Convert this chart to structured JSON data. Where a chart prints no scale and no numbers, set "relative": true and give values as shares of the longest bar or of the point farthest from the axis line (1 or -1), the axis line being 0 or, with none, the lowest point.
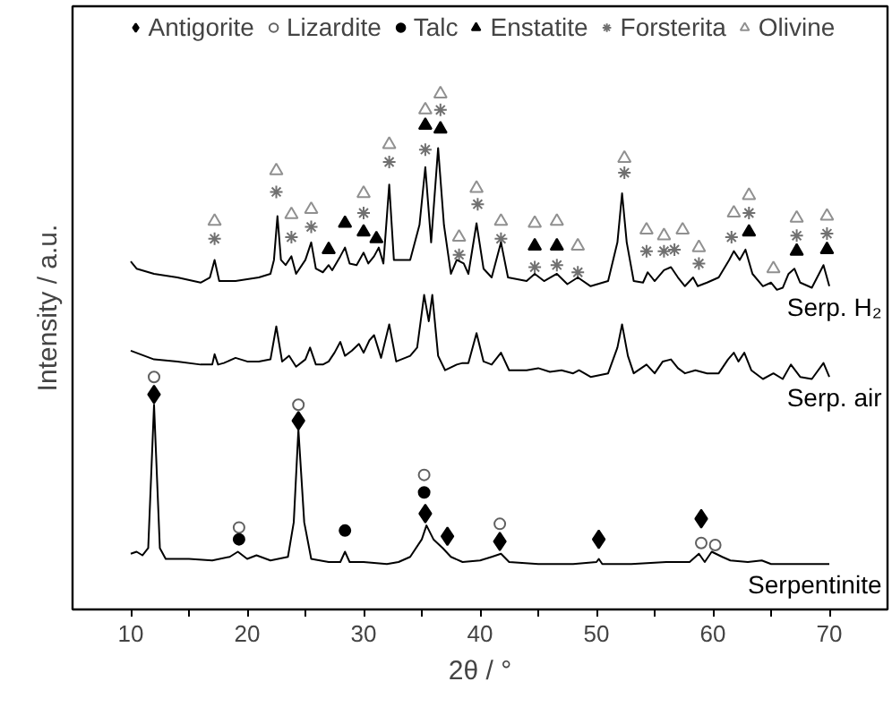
{
  "chart_data": {
    "type": "line",
    "relative": true,
    "xlabel": "2θ / °",
    "ylabel": "Intensity / a.u.",
    "xlim": [
      5,
      75
    ],
    "xticks": [
      10,
      {
        "value": 15,
        "label": null
      },
      20,
      {
        "value": 25,
        "label": null
      },
      30,
      {
        "value": 35,
        "label": null
      },
      40,
      {
        "value": 45,
        "label": null
      },
      50,
      {
        "value": 55,
        "label": null
      },
      60,
      {
        "value": 65,
        "label": null
      },
      70
    ],
    "legend": "top",
    "grid": false,
    "series": [
      {
        "name": "Antigorite",
        "type": "scatter",
        "marker": "diamond",
        "color": "#000000",
        "x": [
          12.0,
          24.4,
          35.3,
          37.2,
          41.7,
          50.2,
          59.0
        ],
        "values": [
          0.417,
          0.366,
          0.186,
          0.142,
          0.132,
          0.136,
          0.176
        ]
      },
      {
        "name": "Lizardite",
        "type": "scatter",
        "marker": "circle_open",
        "color": "#606060",
        "x": [
          12.0,
          19.3,
          24.4,
          35.2,
          41.7,
          59.0,
          60.2
        ],
        "values": [
          0.451,
          0.159,
          0.397,
          0.261,
          0.166,
          0.129,
          0.125
        ]
      },
      {
        "name": "Talc",
        "type": "scatter",
        "marker": "circle",
        "color": "#000000",
        "x": [
          19.3,
          28.4,
          35.2
        ],
        "values": [
          0.136,
          0.153,
          0.227
        ]
      },
      {
        "name": "Enstatite",
        "type": "scatter",
        "marker": "triangle",
        "color": "#000000",
        "x": [
          27.0,
          28.4,
          30.0,
          31.1,
          35.3,
          36.6,
          44.7,
          46.6,
          63.1,
          67.2,
          69.8
        ],
        "values": [
          0.698,
          0.749,
          0.732,
          0.719,
          0.939,
          0.932,
          0.705,
          0.705,
          0.732,
          0.695,
          0.698
        ]
      },
      {
        "name": "Forsterita",
        "type": "scatter",
        "marker": "cross",
        "color": "#707070",
        "x": [
          17.2,
          22.5,
          23.8,
          25.5,
          30.0,
          32.2,
          35.3,
          36.6,
          38.2,
          39.8,
          41.8,
          44.7,
          46.6,
          48.4,
          52.4,
          54.3,
          55.8,
          56.7,
          58.8,
          61.6,
          63.1,
          67.2,
          69.8
        ],
        "values": [
          0.719,
          0.81,
          0.722,
          0.742,
          0.769,
          0.868,
          0.892,
          0.969,
          0.688,
          0.786,
          0.719,
          0.664,
          0.668,
          0.654,
          0.847,
          0.695,
          0.695,
          0.698,
          0.671,
          0.722,
          0.769,
          0.725,
          0.729
        ]
      },
      {
        "name": "Olivine",
        "type": "scatter",
        "marker": "triangle_open",
        "color": "#909090",
        "x": [
          17.2,
          22.5,
          23.8,
          25.5,
          30.0,
          32.2,
          35.3,
          36.6,
          38.2,
          39.7,
          41.8,
          44.7,
          46.6,
          48.4,
          52.4,
          54.3,
          55.8,
          57.4,
          58.8,
          61.8,
          63.1,
          65.2,
          67.2,
          69.8
        ],
        "values": [
          0.753,
          0.851,
          0.766,
          0.776,
          0.807,
          0.902,
          0.969,
          1.0,
          0.722,
          0.817,
          0.753,
          0.749,
          0.753,
          0.705,
          0.875,
          0.736,
          0.725,
          0.736,
          0.702,
          0.769,
          0.803,
          0.661,
          0.759,
          0.763
        ]
      },
      {
        "name": "Serp. H₂",
        "color": "#000000",
        "x": [
          10.0,
          10.5,
          12,
          14,
          16,
          16.8,
          17.2,
          17.6,
          19,
          21,
          22,
          22.3,
          22.6,
          22.9,
          23.3,
          23.8,
          24.2,
          25.0,
          25.5,
          25.9,
          26.5,
          27.0,
          27.3,
          28.0,
          28.4,
          28.8,
          29.4,
          30.0,
          30.4,
          30.9,
          31.3,
          31.7,
          32.2,
          32.6,
          34.0,
          34.8,
          35.3,
          35.8,
          36.4,
          36.9,
          37.5,
          38.0,
          38.6,
          39.0,
          39.7,
          40.3,
          41.0,
          41.8,
          42.4,
          44.0,
          44.7,
          45.5,
          46.6,
          47.5,
          48.4,
          49.5,
          51.0,
          51.8,
          52.2,
          52.6,
          53.2,
          54.0,
          54.4,
          55.0,
          55.8,
          56.4,
          57.0,
          57.6,
          58.3,
          58.7,
          59.5,
          60.5,
          61.4,
          61.8,
          62.3,
          62.8,
          63.4,
          64.3,
          65.0,
          65.5,
          66.0,
          66.5,
          67.0,
          67.5,
          68.5,
          69.5,
          70.0
        ],
        "values": [
          0.675,
          0.661,
          0.651,
          0.644,
          0.634,
          0.644,
          0.678,
          0.637,
          0.637,
          0.644,
          0.651,
          0.678,
          0.763,
          0.678,
          0.668,
          0.685,
          0.651,
          0.678,
          0.712,
          0.661,
          0.654,
          0.668,
          0.658,
          0.685,
          0.702,
          0.671,
          0.668,
          0.692,
          0.671,
          0.685,
          0.702,
          0.671,
          0.824,
          0.678,
          0.678,
          0.746,
          0.858,
          0.712,
          0.895,
          0.746,
          0.651,
          0.678,
          0.671,
          0.651,
          0.749,
          0.661,
          0.644,
          0.712,
          0.644,
          0.637,
          0.651,
          0.637,
          0.651,
          0.631,
          0.644,
          0.627,
          0.637,
          0.712,
          0.807,
          0.712,
          0.637,
          0.634,
          0.654,
          0.637,
          0.658,
          0.664,
          0.644,
          0.627,
          0.644,
          0.627,
          0.634,
          0.644,
          0.678,
          0.695,
          0.678,
          0.698,
          0.651,
          0.627,
          0.634,
          0.62,
          0.624,
          0.651,
          0.661,
          0.634,
          0.624,
          0.668,
          0.627
        ]
      },
      {
        "name": "Serp. air",
        "color": "#000000",
        "x": [
          10.0,
          12,
          14,
          16,
          17.0,
          17.2,
          17.5,
          18,
          19,
          20,
          21,
          22,
          22.5,
          23,
          23.6,
          24.2,
          25.0,
          25.4,
          25.9,
          26.5,
          27.0,
          27.5,
          28.0,
          28.4,
          29.0,
          29.6,
          30.0,
          30.5,
          30.9,
          31.5,
          32.2,
          32.8,
          34.0,
          34.6,
          35.2,
          35.6,
          35.9,
          36.4,
          37.0,
          38.0,
          38.5,
          39.0,
          39.7,
          40.3,
          41.0,
          41.8,
          42.5,
          44,
          45,
          46,
          47,
          48,
          48.5,
          49.5,
          51.0,
          51.8,
          52.2,
          52.7,
          53.2,
          54.3,
          55.0,
          55.7,
          56.4,
          57.0,
          57.6,
          58.5,
          59.5,
          60.5,
          61.3,
          61.8,
          62.2,
          62.7,
          63.3,
          64.3,
          65.2,
          66.0,
          66.7,
          67.5,
          68.5,
          69.5,
          70.0
        ],
        "values": [
          0.502,
          0.485,
          0.481,
          0.475,
          0.475,
          0.495,
          0.475,
          0.478,
          0.488,
          0.481,
          0.481,
          0.485,
          0.549,
          0.481,
          0.492,
          0.471,
          0.485,
          0.508,
          0.475,
          0.475,
          0.481,
          0.498,
          0.519,
          0.492,
          0.502,
          0.515,
          0.498,
          0.522,
          0.532,
          0.488,
          0.553,
          0.481,
          0.492,
          0.508,
          0.61,
          0.559,
          0.61,
          0.492,
          0.464,
          0.475,
          0.478,
          0.478,
          0.536,
          0.481,
          0.475,
          0.498,
          0.464,
          0.464,
          0.468,
          0.461,
          0.464,
          0.458,
          0.464,
          0.451,
          0.458,
          0.508,
          0.553,
          0.492,
          0.458,
          0.475,
          0.458,
          0.481,
          0.485,
          0.468,
          0.458,
          0.464,
          0.458,
          0.458,
          0.485,
          0.498,
          0.481,
          0.498,
          0.464,
          0.447,
          0.458,
          0.447,
          0.475,
          0.451,
          0.447,
          0.478,
          0.451
        ]
      },
      {
        "name": "Serpentinite",
        "color": "#000000",
        "x": [
          10.0,
          10.5,
          11.0,
          11.5,
          12.0,
          12.5,
          13.0,
          15,
          17,
          18.5,
          19.2,
          20,
          20.8,
          22,
          23.5,
          24.0,
          24.4,
          24.9,
          25.5,
          27,
          28.0,
          28.4,
          28.8,
          30,
          32,
          33,
          34,
          35.0,
          35.4,
          36.0,
          36.8,
          37.5,
          38.5,
          40,
          41.0,
          41.8,
          42.5,
          45,
          48,
          50.0,
          50.2,
          50.5,
          53,
          56,
          58,
          58.8,
          59.3,
          59.9,
          60.8,
          61.5,
          63,
          64.2,
          65,
          68,
          70
        ],
        "values": [
          0.108,
          0.112,
          0.105,
          0.119,
          0.397,
          0.119,
          0.098,
          0.098,
          0.095,
          0.102,
          0.112,
          0.098,
          0.105,
          0.095,
          0.102,
          0.169,
          0.349,
          0.169,
          0.098,
          0.092,
          0.092,
          0.112,
          0.092,
          0.092,
          0.088,
          0.092,
          0.102,
          0.136,
          0.163,
          0.136,
          0.119,
          0.102,
          0.092,
          0.095,
          0.102,
          0.108,
          0.092,
          0.088,
          0.088,
          0.092,
          0.098,
          0.088,
          0.088,
          0.092,
          0.092,
          0.108,
          0.092,
          0.112,
          0.102,
          0.095,
          0.092,
          0.095,
          0.088,
          0.088,
          0.088
        ]
      }
    ]
  }
}
